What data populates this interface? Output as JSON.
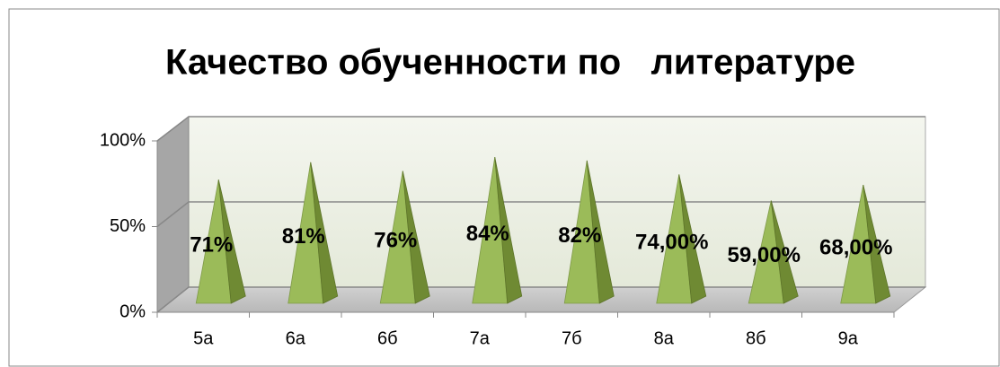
{
  "chart_data": {
    "type": "pyramid3d",
    "title": "Качество обученности по   литературе",
    "categories": [
      "5а",
      "6а",
      "6б",
      "7а",
      "7б",
      "8а",
      "8б",
      "9а"
    ],
    "values": [
      71,
      81,
      76,
      84,
      82,
      74,
      59,
      68
    ],
    "value_labels": [
      "71%",
      "81%",
      "76%",
      "84%",
      "82%",
      "74,00%",
      "59,00%",
      "68,00%"
    ],
    "color": "#9bbb59",
    "ylim": [
      0,
      100
    ],
    "yticks": [
      {
        "value": 0,
        "label": "0%"
      },
      {
        "value": 50,
        "label": "50%"
      },
      {
        "value": 100,
        "label": "100%"
      }
    ],
    "grid": true
  }
}
